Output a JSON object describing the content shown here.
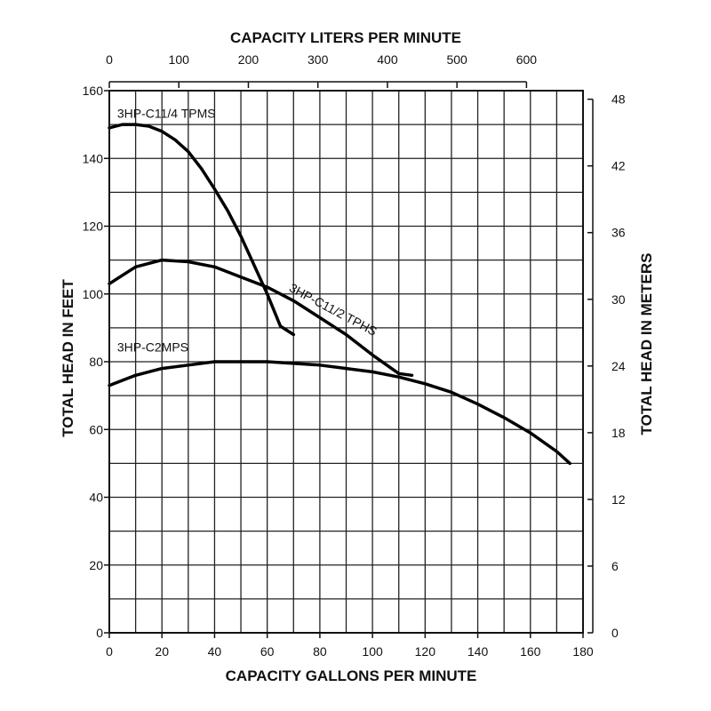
{
  "chart_data": {
    "type": "line",
    "title": "",
    "xlabel": "CAPACITY GALLONS PER MINUTE",
    "ylabel": "TOTAL HEAD IN FEET",
    "x2label": "CAPACITY LITERS PER MINUTE",
    "y2label": "TOTAL HEAD IN METERS",
    "xlim": [
      0,
      180
    ],
    "ylim": [
      0,
      160
    ],
    "x2lim": [
      0,
      681.3
    ],
    "y2lim": [
      0,
      48.77
    ],
    "grid": true,
    "legend": "none",
    "x_ticks": [
      "0",
      "20",
      "40",
      "60",
      "80",
      "100",
      "120",
      "140",
      "160",
      "180"
    ],
    "y_ticks": [
      "0",
      "20",
      "40",
      "60",
      "80",
      "100",
      "120",
      "140",
      "160"
    ],
    "x2_ticks": [
      "0",
      "100",
      "200",
      "300",
      "400",
      "500",
      "600"
    ],
    "y2_ticks": [
      "0",
      "6",
      "12",
      "18",
      "24",
      "30",
      "36",
      "42",
      "48"
    ],
    "series": [
      {
        "name": "3HP-C11/4 TPMS",
        "x": [
          0,
          5,
          10,
          15,
          20,
          25,
          30,
          35,
          40,
          45,
          50,
          55,
          60,
          65,
          70
        ],
        "y": [
          149,
          150,
          150,
          149.5,
          148,
          145.5,
          142,
          137,
          131,
          124.5,
          117,
          108.5,
          100,
          90.5,
          88
        ]
      },
      {
        "name": "3HP-C11/2 TPHS",
        "x": [
          0,
          10,
          20,
          30,
          40,
          50,
          60,
          70,
          80,
          90,
          100,
          110,
          115
        ],
        "y": [
          103,
          108,
          110,
          109.5,
          108,
          105,
          102,
          98,
          93,
          88,
          82,
          76.5,
          76
        ]
      },
      {
        "name": "3HP-C2MPS",
        "x": [
          0,
          10,
          20,
          30,
          40,
          50,
          60,
          70,
          80,
          90,
          100,
          110,
          120,
          130,
          140,
          150,
          160,
          170,
          175
        ],
        "y": [
          73,
          76,
          78,
          79,
          80,
          80,
          80,
          79.5,
          79,
          78,
          77,
          75.5,
          73.5,
          71,
          67.5,
          63.5,
          59,
          53.5,
          50
        ]
      }
    ]
  }
}
